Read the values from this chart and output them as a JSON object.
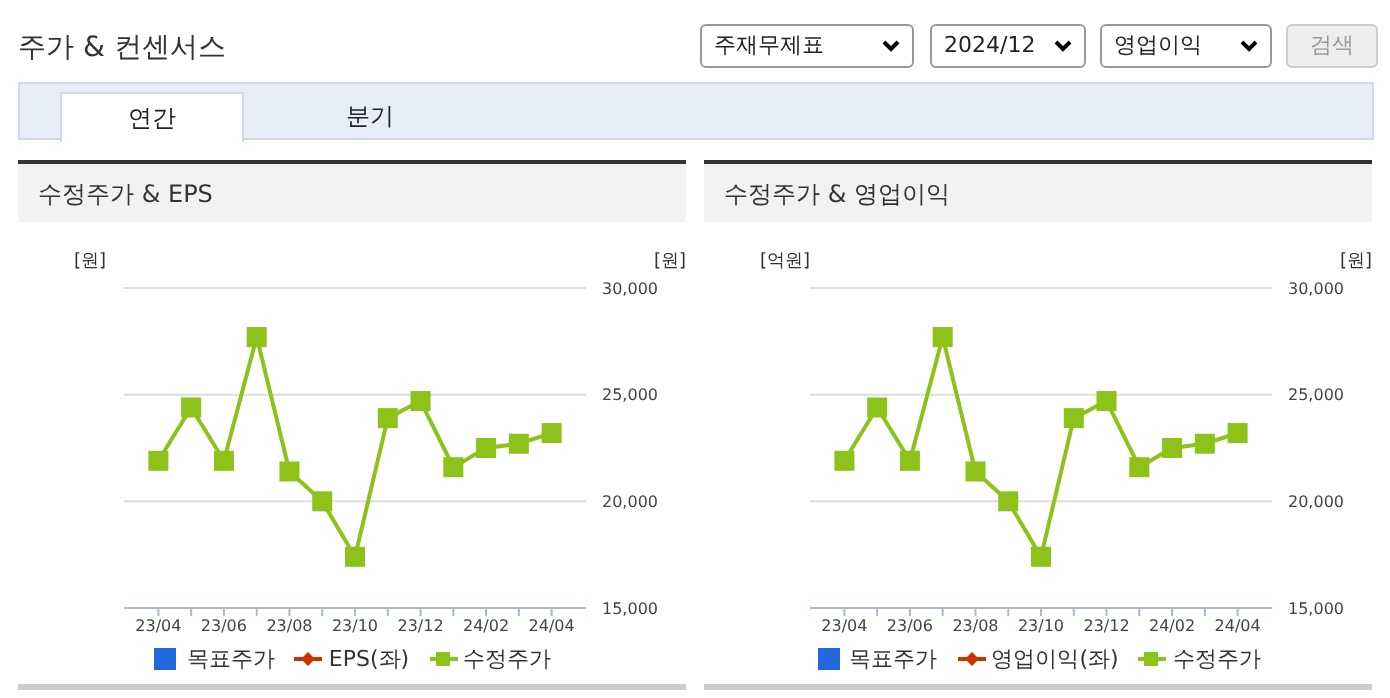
{
  "chart_data": [
    {
      "type": "line",
      "title": "수정주가 & EPS",
      "ylabel": "[원]",
      "y2label": "[원]",
      "annotations": [
        "주가 & 컨센서스",
        "주재무제표",
        "2024/12",
        "영업이익",
        "검색",
        "연간",
        "분기"
      ],
      "categories": [
        "23/04",
        null,
        "23/06",
        null,
        "23/08",
        null,
        "23/10",
        null,
        "23/12",
        null,
        "24/02",
        null,
        "24/04"
      ],
      "series": [
        {
          "name": "목표주가",
          "type": "bar",
          "color": "#2368dc",
          "values": [
            null,
            null,
            null,
            null,
            null,
            null,
            null,
            null,
            null,
            null,
            null,
            null,
            null
          ]
        },
        {
          "name": "EPS(좌)",
          "color": "#cc3300",
          "values": [
            null,
            null,
            null,
            null,
            null,
            null,
            null,
            null,
            null,
            null,
            null,
            null,
            null
          ]
        },
        {
          "name": "수정주가",
          "axis": "y2",
          "color": "#8cc21a",
          "values": [
            21900,
            24400,
            21900,
            27700,
            21400,
            20000,
            17400,
            23900,
            24700,
            21600,
            22500,
            22700,
            23200
          ]
        }
      ],
      "y2lim": [
        15000,
        30000
      ],
      "y2ticks": [
        {
          "value": 15000,
          "label": "15,000"
        },
        {
          "value": 20000,
          "label": "20,000"
        },
        {
          "value": 25000,
          "label": "25,000"
        },
        {
          "value": 30000,
          "label": "30,000"
        }
      ],
      "grid": "y",
      "marker": "square",
      "legend": "bottom"
    },
    {
      "type": "line",
      "title": "수정주가 & 영업이익",
      "ylabel": "[억원]",
      "y2label": "[원]",
      "categories": [
        "23/04",
        null,
        "23/06",
        null,
        "23/08",
        null,
        "23/10",
        null,
        "23/12",
        null,
        "24/02",
        null,
        "24/04"
      ],
      "series": [
        {
          "name": "목표주가",
          "type": "bar",
          "color": "#2368dc",
          "values": [
            null,
            null,
            null,
            null,
            null,
            null,
            null,
            null,
            null,
            null,
            null,
            null,
            null
          ]
        },
        {
          "name": "영업이익(좌)",
          "color": "#cc3300",
          "values": [
            null,
            null,
            null,
            null,
            null,
            null,
            null,
            null,
            null,
            null,
            null,
            null,
            null
          ]
        },
        {
          "name": "수정주가",
          "axis": "y2",
          "color": "#8cc21a",
          "values": [
            21900,
            24400,
            21900,
            27700,
            21400,
            20000,
            17400,
            23900,
            24700,
            21600,
            22500,
            22700,
            23200
          ]
        }
      ],
      "y2lim": [
        15000,
        30000
      ],
      "y2ticks": [
        {
          "value": 15000,
          "label": "15,000"
        },
        {
          "value": 20000,
          "label": "20,000"
        },
        {
          "value": 25000,
          "label": "25,000"
        },
        {
          "value": 30000,
          "label": "30,000"
        }
      ],
      "grid": "y",
      "marker": "square",
      "legend": "bottom"
    }
  ]
}
